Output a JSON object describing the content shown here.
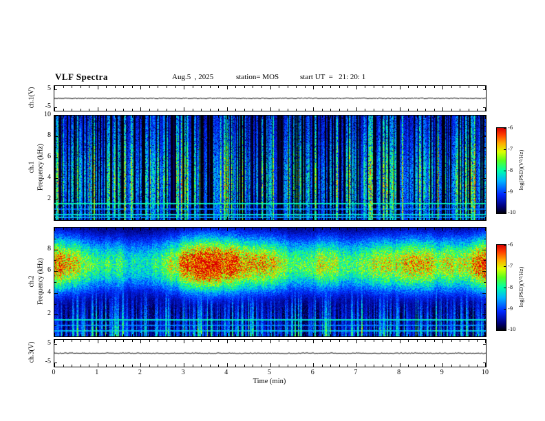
{
  "title": "VLF Spectra",
  "header": {
    "date": "Aug.5  , 2025",
    "station": "station= MOS",
    "start_ut": "start UT  =   21: 20: 1"
  },
  "xaxis": {
    "label": "Time  (min)",
    "min": 0,
    "max": 10,
    "major_ticks": [
      0,
      1,
      2,
      3,
      4,
      5,
      6,
      7,
      8,
      9,
      10
    ]
  },
  "strip_top": {
    "channel_label": "ch.1(V)",
    "y_ticks": [
      5,
      -5
    ],
    "ylim": [
      -7,
      7
    ]
  },
  "strip_bottom": {
    "channel_label": "ch.3(V)",
    "y_ticks": [
      5,
      -5
    ],
    "ylim": [
      -7,
      7
    ]
  },
  "panel1": {
    "channel_label": "ch.1",
    "ylabel": "Frequency  (kHz)",
    "ylim": [
      0,
      10
    ],
    "major_ticks": [
      10,
      8,
      6,
      4,
      2
    ],
    "minor_ticks": [
      9,
      7,
      5,
      3,
      1
    ]
  },
  "panel2": {
    "channel_label": "ch.2",
    "ylabel": "Frequency  (kHz)",
    "ylim": [
      0,
      10
    ],
    "major_ticks": [
      8,
      6,
      4,
      2
    ],
    "minor_ticks": [
      9,
      7,
      5,
      3,
      1
    ]
  },
  "colorbar": {
    "label": "log(PSD)(V²/Hz)",
    "ticks": [
      -6,
      -7,
      -8,
      -9,
      -10
    ],
    "min": -10,
    "max": -6,
    "colormap_stops": [
      [
        0.0,
        "#00000c"
      ],
      [
        0.08,
        "#000078"
      ],
      [
        0.22,
        "#0028ff"
      ],
      [
        0.38,
        "#00b4ff"
      ],
      [
        0.5,
        "#00ffaa"
      ],
      [
        0.62,
        "#5aff1e"
      ],
      [
        0.72,
        "#dcff00"
      ],
      [
        0.82,
        "#ffaa00"
      ],
      [
        0.92,
        "#ff3c00"
      ],
      [
        1.0,
        "#d70000"
      ]
    ]
  },
  "chart_data": {
    "type": "heatmap",
    "title": "VLF Spectra",
    "x": {
      "label": "Time (min)",
      "range": [
        0,
        10
      ],
      "ticks": [
        0,
        1,
        2,
        3,
        4,
        5,
        6,
        7,
        8,
        9,
        10
      ]
    },
    "z": {
      "label": "log(PSD)(V²/Hz)",
      "range": [
        -10,
        -6
      ],
      "colorbar_ticks": [
        -6,
        -7,
        -8,
        -9,
        -10
      ]
    },
    "panels": [
      {
        "name": "ch.1",
        "ylabel": "Frequency (kHz)",
        "y_range_kHz": [
          0,
          10
        ],
        "content": "impulsive broadband vertical streaks (sferics) on black background, blue/green with occasional yellow-red cores",
        "horizontal_lines_kHz": [
          1.6,
          1.05,
          0.5,
          0.25
        ],
        "streak_density": 0.45,
        "streak_peak_kHz": 3.5,
        "seed": 20250805
      },
      {
        "name": "ch.2",
        "ylabel": "Frequency (kHz)",
        "y_range_kHz": [
          0,
          10
        ],
        "content": "continuous broadband hiss band ~5-8.5 kHz (green-yellow-red) with embedded vertical sferic streaks below",
        "band_center_kHz": 6.6,
        "band_sigma_kHz": 1.8,
        "horizontal_lines_kHz": [
          1.5,
          1.0,
          0.5
        ],
        "streak_density": 0.5,
        "seed": 815
      }
    ],
    "strips": [
      {
        "name": "ch.1(V)",
        "y_ticks": [
          5,
          -5
        ],
        "signal": "flat waveform near 0 V"
      },
      {
        "name": "ch.3(V)",
        "y_ticks": [
          5,
          -5
        ],
        "signal": "flat waveform near 0 V"
      }
    ]
  }
}
